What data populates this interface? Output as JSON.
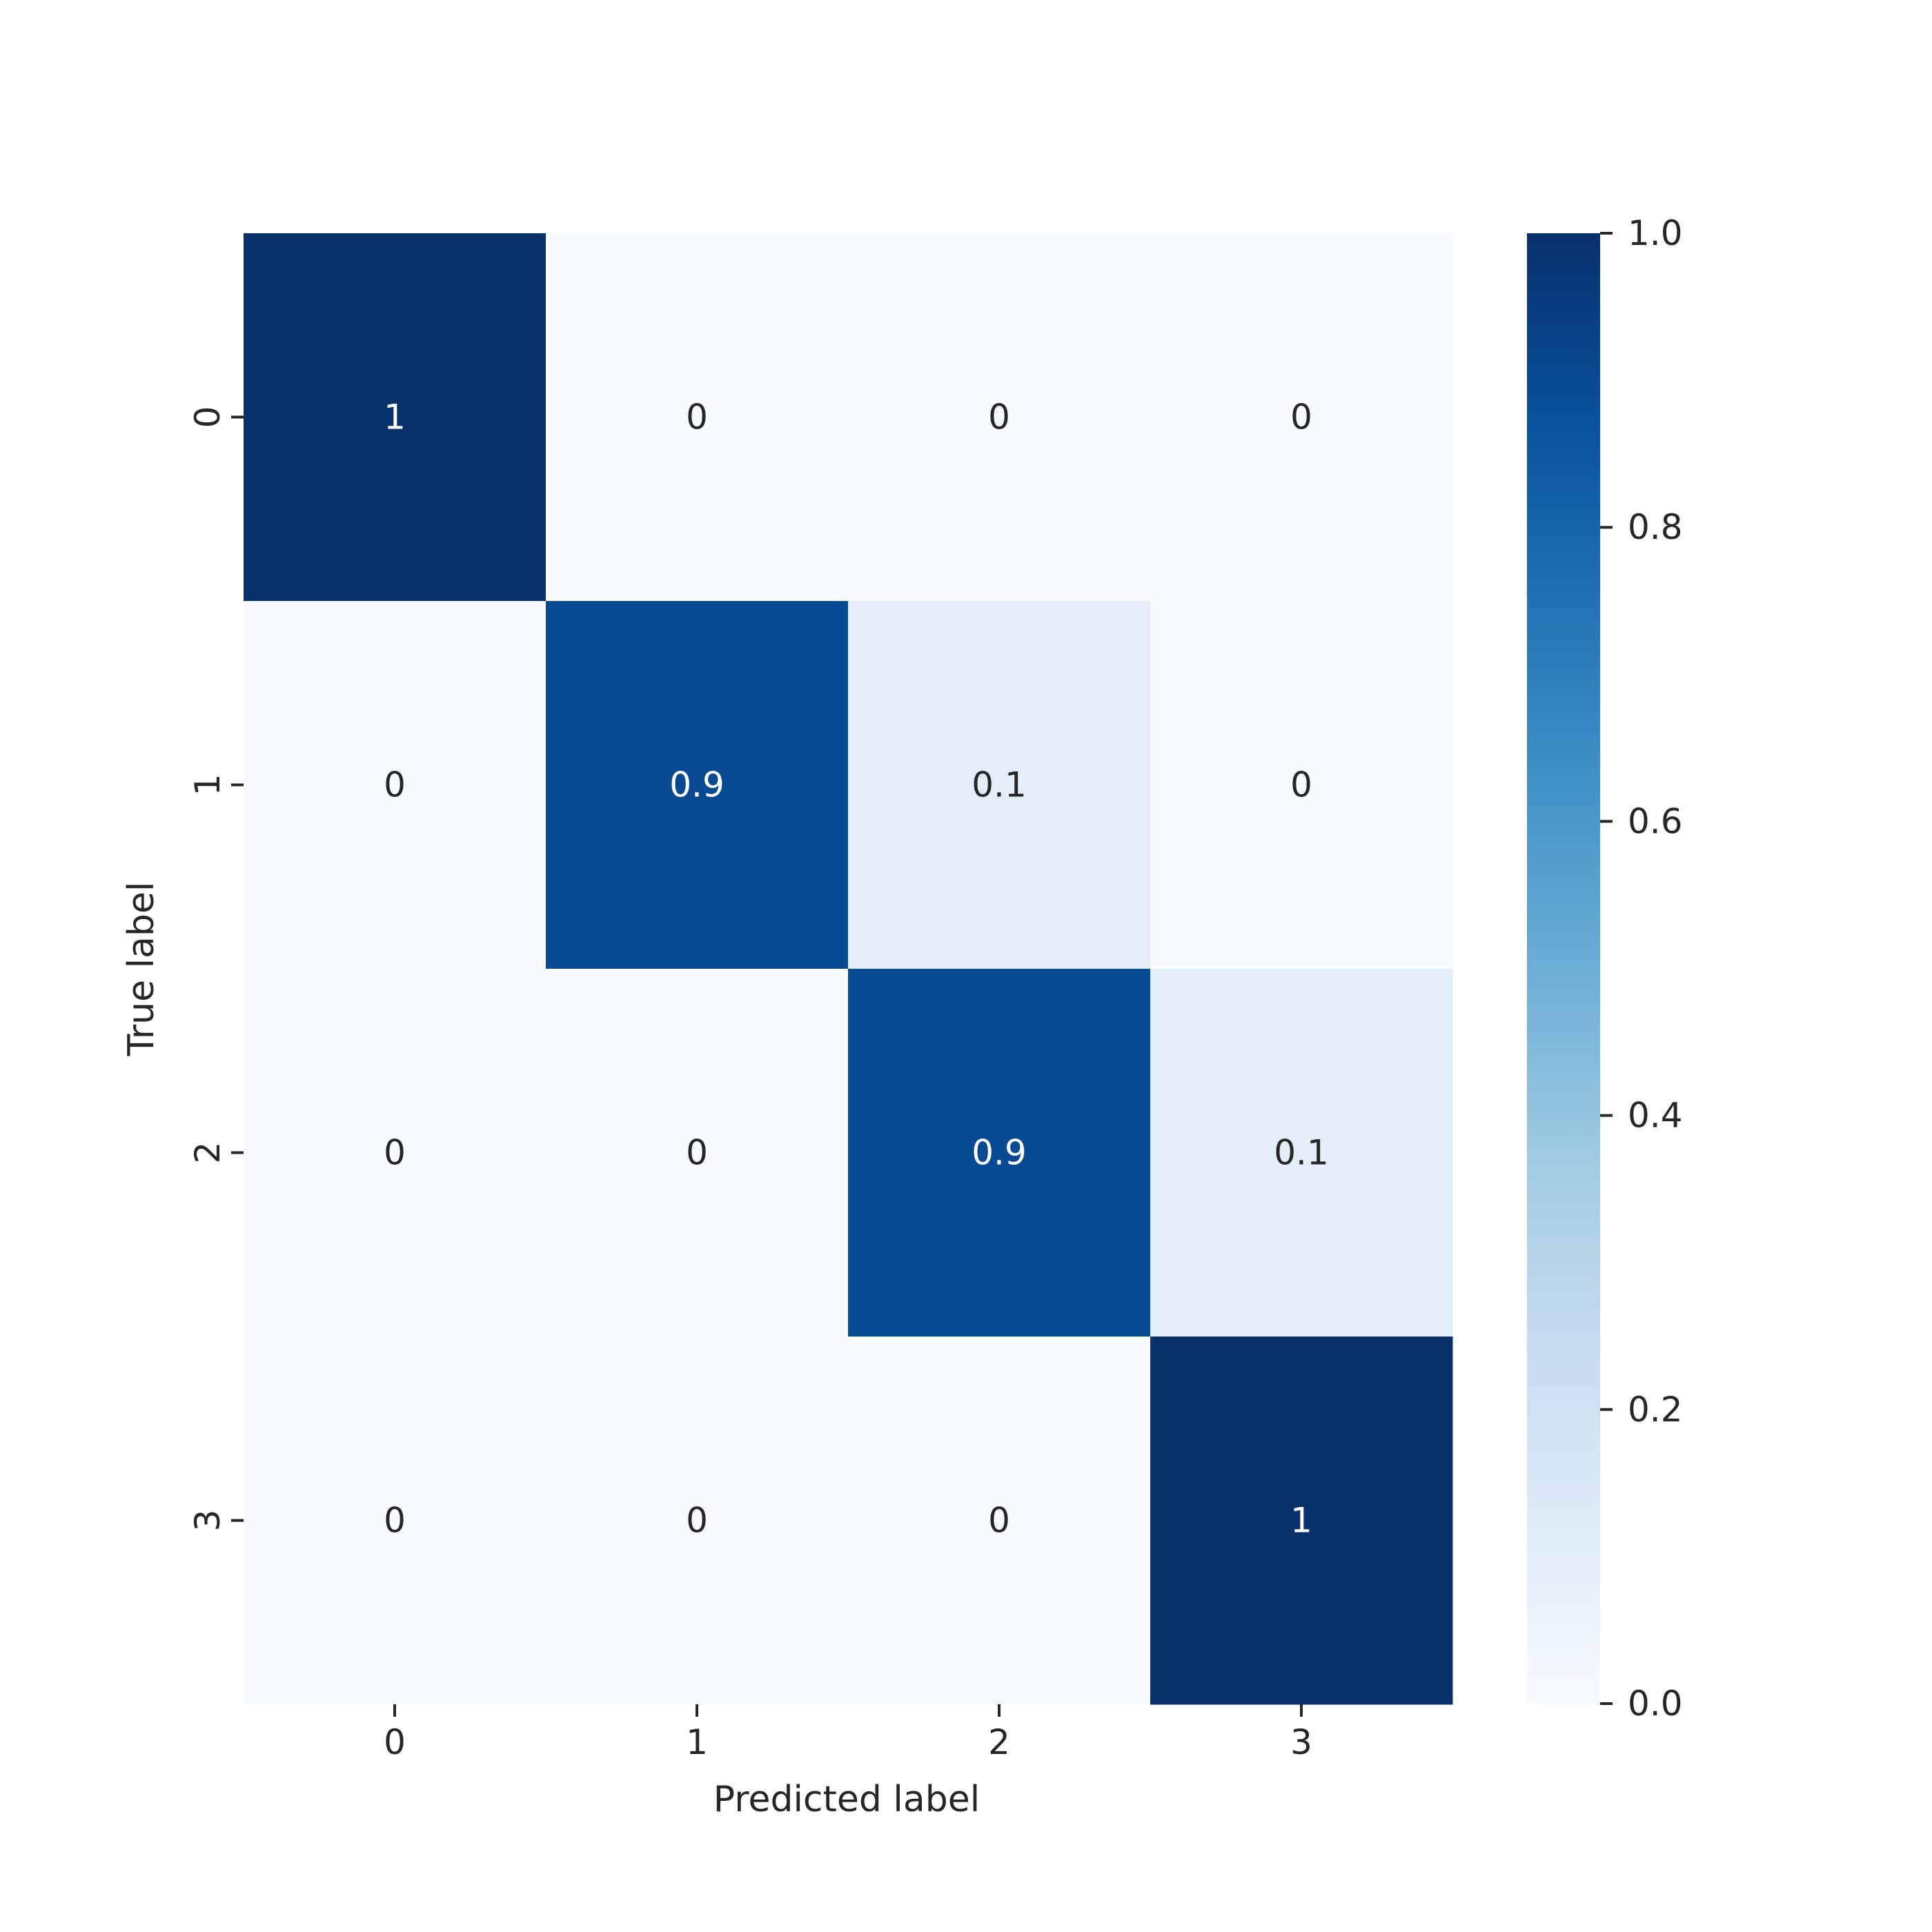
{
  "chart_data": {
    "type": "heatmap",
    "title": "",
    "xlabel": "Predicted label",
    "ylabel": "True label",
    "x_categories": [
      "0",
      "1",
      "2",
      "3"
    ],
    "y_categories": [
      "0",
      "1",
      "2",
      "3"
    ],
    "values": [
      [
        1,
        0,
        0,
        0
      ],
      [
        0,
        0.9,
        0.1,
        0
      ],
      [
        0,
        0,
        0.9,
        0.1
      ],
      [
        0,
        0,
        0,
        1
      ]
    ],
    "cell_labels": [
      [
        "1",
        "0",
        "0",
        "0"
      ],
      [
        "0",
        "0.9",
        "0.1",
        "0"
      ],
      [
        "0",
        "0",
        "0.9",
        "0.1"
      ],
      [
        "0",
        "0",
        "0",
        "1"
      ]
    ],
    "colormap": "Blues",
    "vmin": 0,
    "vmax": 1,
    "colorbar_ticks": [
      "0.0",
      "0.2",
      "0.4",
      "0.6",
      "0.8",
      "1.0"
    ],
    "grid": false,
    "legend": "colorbar-right"
  }
}
